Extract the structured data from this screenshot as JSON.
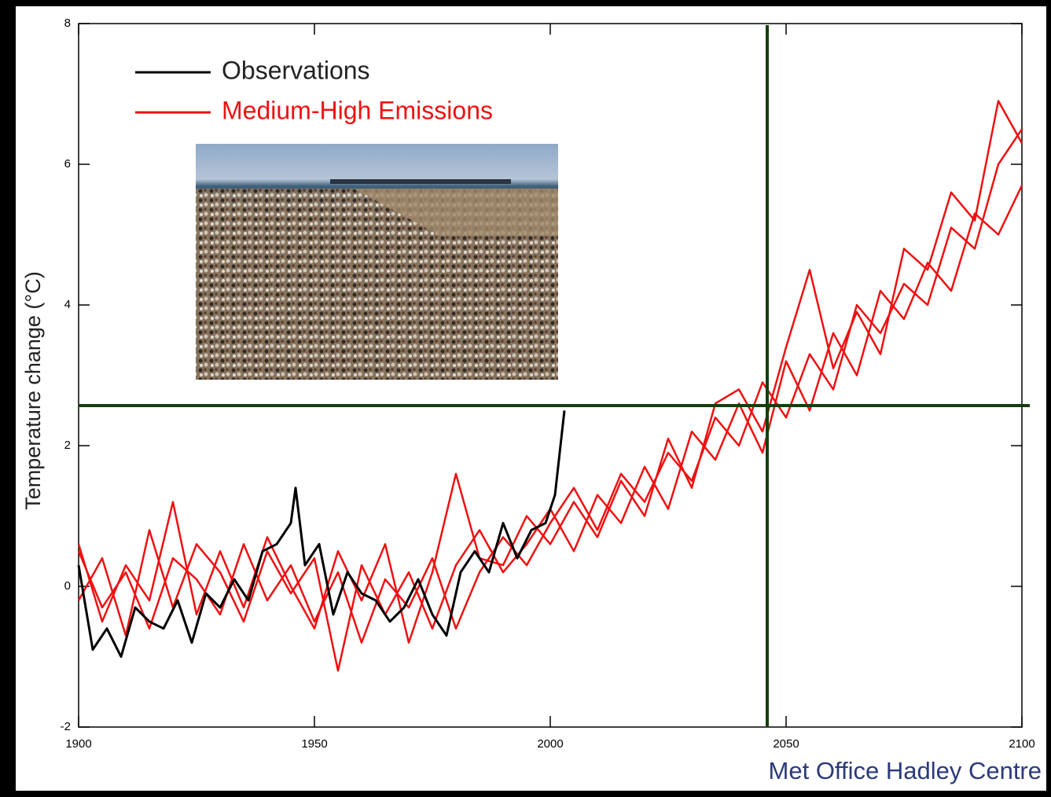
{
  "chart_data": {
    "type": "line",
    "ylabel": "Temperature change (°C)",
    "source": "Met Office Hadley Centre",
    "xlim": [
      1900,
      2100
    ],
    "xticks": [
      1900,
      1950,
      2000,
      2050,
      2100
    ],
    "ylim": [
      -2,
      8
    ],
    "yticks": [
      -2,
      0,
      2,
      4,
      6,
      8
    ],
    "reference_lines": {
      "x": 2046,
      "y": 2.57,
      "color": "#173d0e"
    },
    "series": [
      {
        "name": "Observations",
        "color": "#000000",
        "x": [
          1900,
          1903,
          1906,
          1909,
          1912,
          1915,
          1918,
          1921,
          1924,
          1927,
          1930,
          1933,
          1936,
          1939,
          1942,
          1945,
          1946,
          1948,
          1951,
          1954,
          1957,
          1960,
          1963,
          1966,
          1969,
          1972,
          1975,
          1978,
          1981,
          1984,
          1987,
          1990,
          1993,
          1996,
          1999,
          2001,
          2003
        ],
        "values": [
          0.3,
          -0.9,
          -0.6,
          -1.0,
          -0.3,
          -0.5,
          -0.6,
          -0.2,
          -0.8,
          -0.1,
          -0.3,
          0.1,
          -0.2,
          0.5,
          0.6,
          0.9,
          1.4,
          0.3,
          0.6,
          -0.4,
          0.2,
          -0.1,
          -0.2,
          -0.5,
          -0.3,
          0.1,
          -0.4,
          -0.7,
          0.2,
          0.5,
          0.2,
          0.9,
          0.4,
          0.8,
          0.9,
          1.3,
          2.5
        ]
      },
      {
        "name": "Medium-High Emissions",
        "color": "#ee1111",
        "x": [
          1900,
          1905,
          1910,
          1915,
          1920,
          1925,
          1930,
          1935,
          1940,
          1945,
          1950,
          1955,
          1960,
          1965,
          1970,
          1975,
          1980,
          1985,
          1990,
          1995,
          2000,
          2005,
          2010,
          2015,
          2020,
          2025,
          2030,
          2035,
          2040,
          2045,
          2050,
          2055,
          2060,
          2065,
          2070,
          2075,
          2080,
          2085,
          2090,
          2095,
          2100
        ],
        "runs": [
          [
            0.5,
            -0.3,
            0.2,
            -0.6,
            0.4,
            0.1,
            -0.4,
            0.6,
            -0.2,
            0.3,
            -0.5,
            0.2,
            -0.8,
            0.1,
            -0.3,
            0.4,
            -0.6,
            0.2,
            0.7,
            0.3,
            0.9,
            1.4,
            0.8,
            1.6,
            1.2,
            1.9,
            1.5,
            2.4,
            2.0,
            2.9,
            2.4,
            3.3,
            2.8,
            4.0,
            3.6,
            4.3,
            4.0,
            5.1,
            4.8,
            6.0,
            6.5
          ],
          [
            -0.2,
            0.4,
            -0.7,
            0.8,
            -0.3,
            0.6,
            0.2,
            -0.5,
            0.5,
            -0.1,
            0.4,
            -1.2,
            0.3,
            -0.4,
            0.2,
            -0.6,
            0.3,
            0.8,
            0.2,
            0.6,
            1.1,
            0.5,
            1.3,
            0.9,
            1.7,
            1.1,
            2.2,
            1.8,
            2.6,
            1.9,
            3.2,
            2.5,
            3.6,
            3.0,
            4.2,
            3.8,
            4.6,
            4.2,
            5.3,
            5.0,
            5.7
          ],
          [
            0.6,
            -0.5,
            0.3,
            -0.2,
            1.2,
            -0.4,
            0.5,
            -0.3,
            0.7,
            0.0,
            -0.6,
            0.5,
            -0.2,
            0.6,
            -0.8,
            0.2,
            1.6,
            0.4,
            0.3,
            1.0,
            0.6,
            1.2,
            0.7,
            1.5,
            1.0,
            2.1,
            1.4,
            2.6,
            2.8,
            2.2,
            3.4,
            4.5,
            3.1,
            3.9,
            3.3,
            4.8,
            4.5,
            5.6,
            5.2,
            6.9,
            6.3
          ]
        ]
      }
    ]
  }
}
